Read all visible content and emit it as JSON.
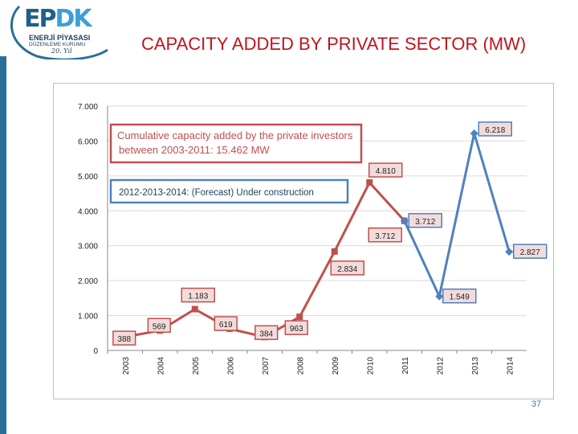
{
  "header": {
    "logo_text_left": "EP",
    "logo_text_right": "DK",
    "logo_line1": "ENERJİ PİYASASI",
    "logo_line2": "DÜZENLEME KURUMU",
    "title": "CAPACITY ADDED BY PRIVATE SECTOR (MW)"
  },
  "footer": {
    "page_number": "37"
  },
  "colors": {
    "red_series": "#c0504d",
    "blue_series": "#4f81bd",
    "title_red": "#c0141e"
  },
  "chart_data": {
    "type": "line",
    "title": "",
    "xlabel": "",
    "ylabel": "",
    "ylim": [
      0,
      7000
    ],
    "yticks": [
      0,
      1000,
      2000,
      3000,
      4000,
      5000,
      6000,
      7000
    ],
    "ytick_labels": [
      "0",
      "1.000",
      "2.000",
      "3.000",
      "4.000",
      "5.000",
      "6.000",
      "7.000"
    ],
    "grid": true,
    "categories": [
      "2003",
      "2004",
      "2005",
      "2006",
      "2007",
      "2008",
      "2009",
      "2010",
      "2011",
      "2012",
      "2013",
      "2014"
    ],
    "series": [
      {
        "color": "#c0504d",
        "marker": "square",
        "x": [
          "2003",
          "2004",
          "2005",
          "2006",
          "2007",
          "2008",
          "2009",
          "2010",
          "2011"
        ],
        "values": [
          388,
          569,
          1183,
          619,
          384,
          963,
          2834,
          4810,
          3712
        ],
        "labels": [
          "388",
          "569",
          "1.183",
          "619",
          "384",
          "963",
          "2.834",
          "4.810",
          "3.712"
        ]
      },
      {
        "color": "#4f81bd",
        "marker": "diamond",
        "x": [
          "2011",
          "2012",
          "2013",
          "2014"
        ],
        "values": [
          3712,
          1549,
          6218,
          2827
        ],
        "labels": [
          "3.712",
          "1.549",
          "6.218",
          "2.827"
        ]
      }
    ],
    "annotations": [
      {
        "text": "Cumulative capacity added by the private investors between 2003-2011:  15.462 MW",
        "border": "#c0504d"
      },
      {
        "text": "2012-2013-2014:  (Forecast) Under construction",
        "border": "#4f81bd"
      }
    ]
  }
}
